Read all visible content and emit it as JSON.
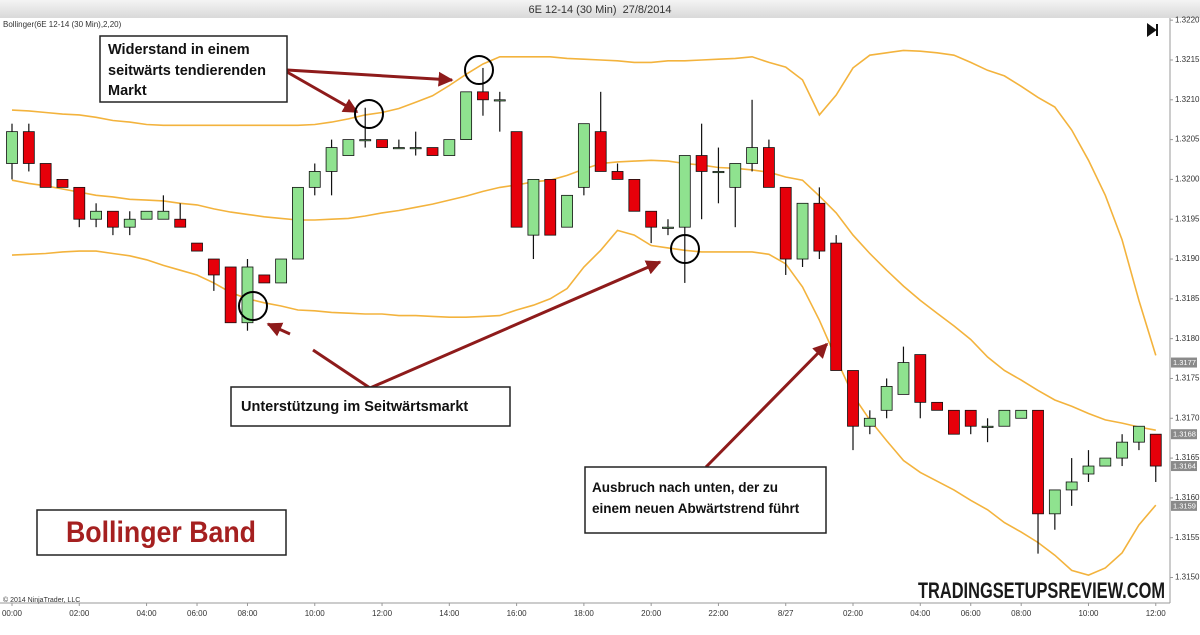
{
  "chart_data": {
    "type": "candlestick",
    "title": "6E 12-14 (30 Min)  27/8/2014",
    "indicator_label": "Bollinger(6E 12-14 (30 Min),2,20)",
    "copyright": "© 2014 NinjaTrader, LLC",
    "watermark": "TRADINGSETUPSREVIEW.COM",
    "label_box": "Bollinger Band",
    "annotations": [
      {
        "lines": [
          "Widerstand in einem",
          "seitwärts tendierenden",
          "Markt"
        ]
      },
      {
        "lines": [
          "Unterstützung im Seitwärtsmarkt"
        ]
      },
      {
        "lines": [
          "Ausbruch nach unten, der zu",
          "einem neuen Abwärtstrend führt"
        ]
      }
    ],
    "categories": [
      "00:00",
      null,
      null,
      null,
      "02:00",
      null,
      null,
      null,
      "04:00",
      null,
      null,
      "06:00",
      null,
      null,
      "08:00",
      null,
      null,
      null,
      "10:00",
      null,
      null,
      null,
      "12:00",
      null,
      null,
      null,
      "14:00",
      null,
      null,
      null,
      "16:00",
      null,
      null,
      null,
      "18:00",
      null,
      null,
      null,
      "20:00",
      null,
      null,
      null,
      "22:00",
      null,
      null,
      null,
      "8/27",
      null,
      null,
      null,
      "02:00",
      null,
      null,
      null,
      "04:00",
      null,
      null,
      "06:00",
      null,
      null,
      "08:00",
      null,
      null,
      null,
      "10:00",
      null,
      null,
      null,
      "12:00"
    ],
    "open": [
      1.3202,
      1.3206,
      1.3202,
      1.32,
      1.3199,
      1.3195,
      1.3196,
      1.3194,
      1.3195,
      1.3195,
      1.3195,
      1.3192,
      1.319,
      1.3189,
      1.3182,
      1.3188,
      1.3187,
      1.319,
      1.3199,
      1.3201,
      1.3203,
      1.3205,
      1.3205,
      1.3204,
      1.3204,
      1.3204,
      1.3203,
      1.3205,
      1.3211,
      1.321,
      1.3206,
      1.3193,
      1.32,
      1.3194,
      1.3199,
      1.3206,
      1.3201,
      1.32,
      1.3196,
      1.3194,
      1.3194,
      1.3203,
      1.3201,
      1.3199,
      1.3202,
      1.3204,
      1.3199,
      1.319,
      1.3197,
      1.3192,
      1.3176,
      1.3169,
      1.3171,
      1.3173,
      1.3178,
      1.3172,
      1.3171,
      1.3171,
      1.3169,
      1.3169,
      1.317,
      1.3171,
      1.3158,
      1.3161,
      1.3163,
      1.3164,
      1.3165,
      1.3167,
      1.3168
    ],
    "high": [
      1.3207,
      1.3207,
      1.3202,
      1.32,
      1.3199,
      1.3197,
      1.3196,
      1.3196,
      1.3196,
      1.3198,
      1.3197,
      1.3192,
      1.319,
      1.3189,
      1.319,
      1.3188,
      1.319,
      1.3199,
      1.3202,
      1.3205,
      1.3205,
      1.3209,
      1.3205,
      1.3205,
      1.3206,
      1.3204,
      1.3205,
      1.3211,
      1.3214,
      1.3211,
      1.3206,
      1.32,
      1.32,
      1.3198,
      1.3207,
      1.3211,
      1.3202,
      1.32,
      1.3196,
      1.3195,
      1.3203,
      1.3207,
      1.3204,
      1.3202,
      1.321,
      1.3205,
      1.3199,
      1.3197,
      1.3199,
      1.3193,
      1.3176,
      1.3171,
      1.3175,
      1.3179,
      1.3178,
      1.3172,
      1.3171,
      1.3171,
      1.317,
      1.3171,
      1.3171,
      1.3171,
      1.3161,
      1.3165,
      1.3166,
      1.3165,
      1.3168,
      1.3169,
      1.3168
    ],
    "low": [
      1.32,
      1.3201,
      1.3199,
      1.3199,
      1.3194,
      1.3194,
      1.3193,
      1.3193,
      1.3195,
      1.3195,
      1.3194,
      1.3191,
      1.3186,
      1.3182,
      1.3181,
      1.3187,
      1.3187,
      1.319,
      1.3198,
      1.3198,
      1.3203,
      1.3204,
      1.3204,
      1.3204,
      1.3203,
      1.3203,
      1.3203,
      1.3205,
      1.3208,
      1.3206,
      1.3194,
      1.319,
      1.3193,
      1.3194,
      1.3198,
      1.3201,
      1.32,
      1.3196,
      1.3192,
      1.3193,
      1.3187,
      1.3195,
      1.3197,
      1.3194,
      1.3201,
      1.3199,
      1.3188,
      1.3189,
      1.319,
      1.3176,
      1.3166,
      1.3168,
      1.317,
      1.3173,
      1.317,
      1.3171,
      1.3168,
      1.3168,
      1.3167,
      1.3169,
      1.317,
      1.3153,
      1.3156,
      1.3159,
      1.3162,
      1.3164,
      1.3164,
      1.3166,
      1.3162
    ],
    "close": [
      1.3206,
      1.3202,
      1.3199,
      1.3199,
      1.3195,
      1.3196,
      1.3194,
      1.3195,
      1.3196,
      1.3196,
      1.3194,
      1.3191,
      1.3188,
      1.3182,
      1.3189,
      1.3187,
      1.319,
      1.3199,
      1.3201,
      1.3204,
      1.3205,
      1.3205,
      1.3204,
      1.3204,
      1.3204,
      1.3203,
      1.3205,
      1.3211,
      1.321,
      1.321,
      1.3194,
      1.32,
      1.3193,
      1.3198,
      1.3207,
      1.3201,
      1.32,
      1.3196,
      1.3194,
      1.3194,
      1.3203,
      1.3201,
      1.3201,
      1.3202,
      1.3204,
      1.3199,
      1.319,
      1.3197,
      1.3191,
      1.3176,
      1.3169,
      1.317,
      1.3174,
      1.3177,
      1.3172,
      1.3171,
      1.3168,
      1.3169,
      1.3169,
      1.3171,
      1.3171,
      1.3158,
      1.3161,
      1.3162,
      1.3164,
      1.3165,
      1.3167,
      1.3169,
      1.3164
    ],
    "up_color": "#8fe28f",
    "down_color": "#e6000a",
    "bands": {
      "color": "#f3b33d",
      "upper": [
        1.32087,
        1.32086,
        1.32084,
        1.32082,
        1.32081,
        1.32078,
        1.32074,
        1.32072,
        1.32069,
        1.32068,
        1.32068,
        1.32068,
        1.32068,
        1.32068,
        1.32068,
        1.32068,
        1.32068,
        1.32068,
        1.32069,
        1.32072,
        1.32076,
        1.32081,
        1.32084,
        1.32089,
        1.32097,
        1.32105,
        1.32118,
        1.32132,
        1.32145,
        1.32154,
        1.32154,
        1.32154,
        1.32154,
        1.32152,
        1.32151,
        1.3215,
        1.32149,
        1.32147,
        1.32147,
        1.32149,
        1.32149,
        1.3215,
        1.32151,
        1.32152,
        1.32154,
        1.32147,
        1.32141,
        1.32125,
        1.32081,
        1.32106,
        1.3214,
        1.32156,
        1.32159,
        1.32162,
        1.32161,
        1.32159,
        1.32156,
        1.32147,
        1.32137,
        1.3213,
        1.32117,
        1.32103,
        1.32091,
        1.32062,
        1.32024,
        1.3198,
        1.31924,
        1.31848,
        1.31779
      ],
      "middle": [
        1.31999,
        1.31995,
        1.31992,
        1.31988,
        1.31984,
        1.3198,
        1.31978,
        1.31975,
        1.31974,
        1.31973,
        1.3197,
        1.31968,
        1.31963,
        1.31959,
        1.31956,
        1.31953,
        1.31951,
        1.31949,
        1.31949,
        1.3195,
        1.31951,
        1.31954,
        1.31958,
        1.31961,
        1.31965,
        1.31969,
        1.31974,
        1.31979,
        1.31985,
        1.3199,
        1.31993,
        1.31997,
        1.31999,
        1.32005,
        1.32013,
        1.3202,
        1.32022,
        1.32023,
        1.32024,
        1.32023,
        1.3202,
        1.32018,
        1.32015,
        1.32014,
        1.32012,
        1.32009,
        1.32003,
        1.31999,
        1.31979,
        1.31958,
        1.3193,
        1.31907,
        1.31886,
        1.31866,
        1.31848,
        1.31832,
        1.31816,
        1.31799,
        1.31777,
        1.3176,
        1.31748,
        1.31735,
        1.31723,
        1.31715,
        1.31706,
        1.31698,
        1.31694,
        1.31689,
        1.31685
      ],
      "lower": [
        1.31905,
        1.31906,
        1.31907,
        1.31909,
        1.3191,
        1.3191,
        1.31907,
        1.31904,
        1.31899,
        1.31892,
        1.31886,
        1.3188,
        1.3187,
        1.31858,
        1.3185,
        1.31845,
        1.31841,
        1.31836,
        1.31835,
        1.31833,
        1.31832,
        1.31831,
        1.31831,
        1.31829,
        1.31829,
        1.31828,
        1.31827,
        1.31827,
        1.31828,
        1.31829,
        1.31836,
        1.31842,
        1.3185,
        1.31863,
        1.3189,
        1.31911,
        1.31936,
        1.3193,
        1.31917,
        1.31914,
        1.31911,
        1.31909,
        1.31909,
        1.31909,
        1.31909,
        1.31906,
        1.31894,
        1.31865,
        1.31823,
        1.31775,
        1.31729,
        1.31698,
        1.31672,
        1.31647,
        1.31632,
        1.31621,
        1.3161,
        1.31597,
        1.31585,
        1.31569,
        1.31557,
        1.31544,
        1.31528,
        1.31509,
        1.31503,
        1.31512,
        1.31531,
        1.31566,
        1.31591
      ]
    },
    "ylim": [
      1.31468,
      1.32209
    ],
    "yticks": [
      {
        "value": 1.315,
        "label": "1.3150"
      },
      1.3155,
      {
        "value": 1.316,
        "label": "1.3160"
      },
      1.3165,
      {
        "value": 1.317,
        "label": "1.3170"
      },
      1.3175,
      {
        "value": 1.318,
        "label": "1.3180"
      },
      1.3185,
      {
        "value": 1.319,
        "label": "1.3190"
      },
      1.3195,
      {
        "value": 1.32,
        "label": "1.3200"
      },
      1.3205,
      {
        "value": 1.321,
        "label": "1.3210"
      },
      1.3215,
      {
        "value": 1.322,
        "label": "1.3220"
      }
    ],
    "price_markers": [
      1.3177,
      1.3168,
      1.3164,
      1.3159
    ]
  }
}
